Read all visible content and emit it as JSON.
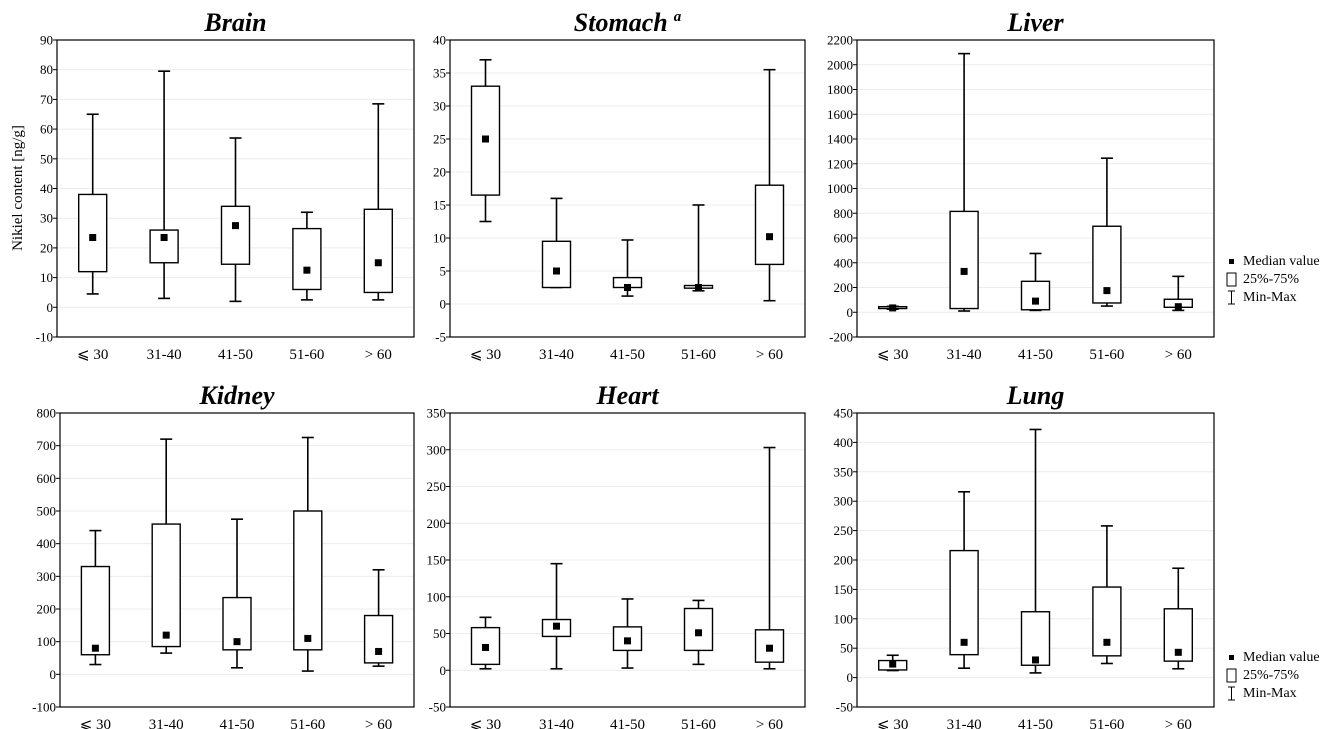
{
  "figure": {
    "ylabel": "Nikiel content [ng/g]",
    "legend": [
      {
        "symbol": "median",
        "label": "Median value"
      },
      {
        "symbol": "box",
        "label": "25%-75%"
      },
      {
        "symbol": "whisker",
        "label": "Min-Max"
      }
    ]
  },
  "chart_data": [
    {
      "type": "box",
      "title": "Brain",
      "categories": [
        "⩽ 30",
        "31-40",
        "41-50",
        "51-60",
        "> 60"
      ],
      "ylim": [
        -10,
        90
      ],
      "yticks": [
        -10,
        0,
        10,
        20,
        30,
        40,
        50,
        60,
        70,
        80,
        90
      ],
      "ytick_labels": [
        "-10",
        "0",
        "10",
        "20",
        "30",
        "40",
        "50",
        "60",
        "70",
        "80",
        "90"
      ],
      "grid": true,
      "boxes": [
        {
          "min": 4.5,
          "q1": 12,
          "median": 23.5,
          "q3": 38,
          "max": 65
        },
        {
          "min": 3,
          "q1": 15,
          "median": 23.5,
          "q3": 26,
          "max": 79.5
        },
        {
          "min": 2,
          "q1": 14.5,
          "median": 27.5,
          "q3": 34,
          "max": 57
        },
        {
          "min": 2.5,
          "q1": 6,
          "median": 12.5,
          "q3": 26.5,
          "max": 32
        },
        {
          "min": 2.5,
          "q1": 5,
          "median": 15,
          "q3": 33,
          "max": 68.5
        }
      ]
    },
    {
      "type": "box",
      "title": "Stomach",
      "title_sup": "a",
      "categories": [
        "⩽ 30",
        "31-40",
        "41-50",
        "51-60",
        "> 60"
      ],
      "ylim": [
        -5,
        40
      ],
      "yticks": [
        -5,
        0,
        5,
        10,
        15,
        20,
        25,
        30,
        35,
        40
      ],
      "ytick_labels": [
        "-5",
        "0",
        "5",
        "10",
        "15",
        "20",
        "25",
        "30",
        "35",
        "40"
      ],
      "grid": true,
      "boxes": [
        {
          "min": 12.5,
          "q1": 16.5,
          "median": 25,
          "q3": 33,
          "max": 37
        },
        {
          "min": 2.5,
          "q1": 2.5,
          "median": 5,
          "q3": 9.5,
          "max": 16
        },
        {
          "min": 1.2,
          "q1": 2.5,
          "median": 2.5,
          "q3": 4,
          "max": 9.7
        },
        {
          "min": 2,
          "q1": 2.4,
          "median": 2.5,
          "q3": 2.8,
          "max": 15
        },
        {
          "min": 0.5,
          "q1": 6,
          "median": 10.2,
          "q3": 18,
          "max": 35.5
        }
      ]
    },
    {
      "type": "box",
      "title": "Liver",
      "categories": [
        "⩽ 30",
        "31-40",
        "41-50",
        "51-60",
        "> 60"
      ],
      "ylim": [
        -200,
        2200
      ],
      "yticks": [
        -200,
        0,
        200,
        400,
        600,
        800,
        1000,
        1200,
        1400,
        1600,
        1800,
        2000,
        2200
      ],
      "ytick_labels": [
        "-200",
        "0",
        "200",
        "400",
        "600",
        "800",
        "1000",
        "1200",
        "1400",
        "1600",
        "1800",
        "2000",
        "2200"
      ],
      "grid": true,
      "boxes": [
        {
          "min": 25,
          "q1": 30,
          "median": 35,
          "q3": 45,
          "max": 48
        },
        {
          "min": 10,
          "q1": 30,
          "median": 330,
          "q3": 815,
          "max": 2090
        },
        {
          "min": 15,
          "q1": 20,
          "median": 90,
          "q3": 250,
          "max": 475
        },
        {
          "min": 50,
          "q1": 75,
          "median": 175,
          "q3": 695,
          "max": 1245
        },
        {
          "min": 15,
          "q1": 40,
          "median": 45,
          "q3": 105,
          "max": 290
        }
      ]
    },
    {
      "type": "box",
      "title": "Kidney",
      "categories": [
        "⩽ 30",
        "31-40",
        "41-50",
        "51-60",
        "> 60"
      ],
      "ylim": [
        -100,
        800
      ],
      "yticks": [
        -100,
        0,
        100,
        200,
        300,
        400,
        500,
        600,
        700,
        800
      ],
      "ytick_labels": [
        "-100",
        "0",
        "100",
        "200",
        "300",
        "400",
        "500",
        "600",
        "700",
        "800"
      ],
      "grid": true,
      "boxes": [
        {
          "min": 30,
          "q1": 60,
          "median": 80,
          "q3": 330,
          "max": 440
        },
        {
          "min": 65,
          "q1": 85,
          "median": 120,
          "q3": 460,
          "max": 720
        },
        {
          "min": 20,
          "q1": 75,
          "median": 100,
          "q3": 235,
          "max": 475
        },
        {
          "min": 10,
          "q1": 75,
          "median": 110,
          "q3": 500,
          "max": 725
        },
        {
          "min": 25,
          "q1": 35,
          "median": 70,
          "q3": 180,
          "max": 320
        }
      ]
    },
    {
      "type": "box",
      "title": "Heart",
      "categories": [
        "⩽ 30",
        "31-40",
        "41-50",
        "51-60",
        "> 60"
      ],
      "ylim": [
        -50,
        350
      ],
      "yticks": [
        -50,
        0,
        50,
        100,
        150,
        200,
        250,
        300,
        350
      ],
      "ytick_labels": [
        "-50",
        "0",
        "50",
        "100",
        "150",
        "200",
        "250",
        "300",
        "350"
      ],
      "grid": true,
      "boxes": [
        {
          "min": 2,
          "q1": 8,
          "median": 31,
          "q3": 58,
          "max": 72
        },
        {
          "min": 2,
          "q1": 46,
          "median": 60,
          "q3": 69,
          "max": 145
        },
        {
          "min": 3,
          "q1": 27,
          "median": 40,
          "q3": 59,
          "max": 97
        },
        {
          "min": 8,
          "q1": 27,
          "median": 51,
          "q3": 84,
          "max": 95
        },
        {
          "min": 2,
          "q1": 11,
          "median": 30,
          "q3": 55,
          "max": 303
        }
      ]
    },
    {
      "type": "box",
      "title": "Lung",
      "categories": [
        "⩽ 30",
        "31-40",
        "41-50",
        "51-60",
        "> 60"
      ],
      "ylim": [
        -50,
        450
      ],
      "yticks": [
        -50,
        0,
        50,
        100,
        150,
        200,
        250,
        300,
        350,
        400,
        450
      ],
      "ytick_labels": [
        "-50",
        "0",
        "50",
        "100",
        "150",
        "200",
        "250",
        "300",
        "350",
        "400",
        "450"
      ],
      "grid": true,
      "boxes": [
        {
          "min": 12,
          "q1": 13,
          "median": 23,
          "q3": 29,
          "max": 38
        },
        {
          "min": 16,
          "q1": 39,
          "median": 60,
          "q3": 216,
          "max": 316
        },
        {
          "min": 8,
          "q1": 21,
          "median": 30,
          "q3": 112,
          "max": 422
        },
        {
          "min": 24,
          "q1": 37,
          "median": 60,
          "q3": 154,
          "max": 258
        },
        {
          "min": 15,
          "q1": 28,
          "median": 43,
          "q3": 117,
          "max": 186
        }
      ]
    }
  ]
}
